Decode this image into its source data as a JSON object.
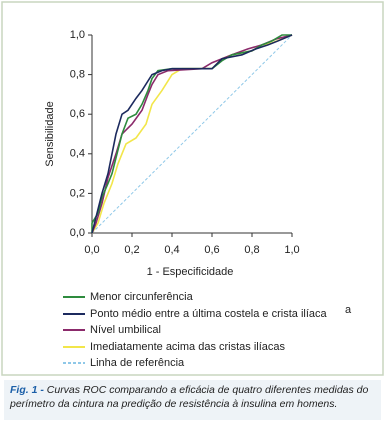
{
  "chart_data": {
    "type": "line",
    "xlabel": "1 - Especificidade",
    "ylabel": "Sensibilidade",
    "xlim": [
      0,
      1
    ],
    "ylim": [
      0,
      1
    ],
    "xticks": [
      {
        "value": 0,
        "label": "0,0"
      },
      {
        "value": 0.2,
        "label": "0,2"
      },
      {
        "value": 0.4,
        "label": "0,4"
      },
      {
        "value": 0.6,
        "label": "0,6"
      },
      {
        "value": 0.8,
        "label": "0,8"
      },
      {
        "value": 1,
        "label": "1,0"
      }
    ],
    "yticks": [
      {
        "value": 0,
        "label": "0,0"
      },
      {
        "value": 0.2,
        "label": "0,2"
      },
      {
        "value": 0.4,
        "label": "0,4"
      },
      {
        "value": 0.6,
        "label": "0,6"
      },
      {
        "value": 0.8,
        "label": "0,8"
      },
      {
        "value": 1,
        "label": "1,0"
      }
    ],
    "annotation": "a",
    "series": [
      {
        "name": "Menor circunferência",
        "color": "#2e8b3e",
        "x": [
          0,
          0,
          0.03,
          0.05,
          0.08,
          0.1,
          0.12,
          0.15,
          0.18,
          0.22,
          0.25,
          0.28,
          0.3,
          0.33,
          0.4,
          0.6,
          0.65,
          0.7,
          0.8,
          0.85,
          0.9,
          0.95,
          1
        ],
        "values": [
          0,
          0.05,
          0.1,
          0.18,
          0.25,
          0.3,
          0.38,
          0.5,
          0.58,
          0.6,
          0.65,
          0.72,
          0.78,
          0.82,
          0.83,
          0.83,
          0.87,
          0.9,
          0.92,
          0.95,
          0.97,
          1,
          1
        ]
      },
      {
        "name": "Ponto médio entre a última costela e crista ilíaca",
        "color": "#1c2a5e",
        "x": [
          0,
          0.02,
          0.05,
          0.08,
          0.1,
          0.12,
          0.15,
          0.18,
          0.22,
          0.25,
          0.3,
          0.35,
          0.4,
          0.6,
          0.65,
          0.75,
          0.82,
          0.88,
          0.93,
          1
        ],
        "values": [
          0,
          0.08,
          0.2,
          0.3,
          0.4,
          0.5,
          0.6,
          0.62,
          0.68,
          0.72,
          0.8,
          0.82,
          0.83,
          0.83,
          0.88,
          0.9,
          0.93,
          0.95,
          0.97,
          1
        ]
      },
      {
        "name": "Nível umbilical",
        "color": "#8b2a6b",
        "x": [
          0,
          0.02,
          0.05,
          0.08,
          0.12,
          0.15,
          0.2,
          0.25,
          0.28,
          0.3,
          0.33,
          0.38,
          0.55,
          0.6,
          0.7,
          0.78,
          0.85,
          0.92,
          1
        ],
        "values": [
          0,
          0.05,
          0.15,
          0.28,
          0.4,
          0.5,
          0.55,
          0.62,
          0.7,
          0.75,
          0.8,
          0.82,
          0.83,
          0.86,
          0.9,
          0.93,
          0.95,
          0.98,
          1
        ]
      },
      {
        "name": "Imediatamente acima das cristas ilíacas",
        "color": "#f2e64a",
        "x": [
          0,
          0.03,
          0.06,
          0.1,
          0.13,
          0.17,
          0.22,
          0.27,
          0.3,
          0.35,
          0.4,
          0.45,
          0.6,
          0.65,
          0.7,
          0.8,
          0.85,
          0.9,
          0.95,
          1
        ],
        "values": [
          0,
          0.05,
          0.15,
          0.25,
          0.35,
          0.45,
          0.48,
          0.55,
          0.65,
          0.72,
          0.8,
          0.83,
          0.83,
          0.88,
          0.9,
          0.92,
          0.95,
          0.96,
          0.98,
          1
        ]
      },
      {
        "name": "Linha de referência",
        "color": "#8fc8e8",
        "dashed": true,
        "x": [
          0,
          1
        ],
        "values": [
          0,
          1
        ]
      }
    ]
  },
  "caption": {
    "label": "Fig. 1 -",
    "text": "Curvas ROC comparando a eficácia de quatro diferentes medidas do perímetro da cintura na predição de resistência à insulina em homens."
  }
}
